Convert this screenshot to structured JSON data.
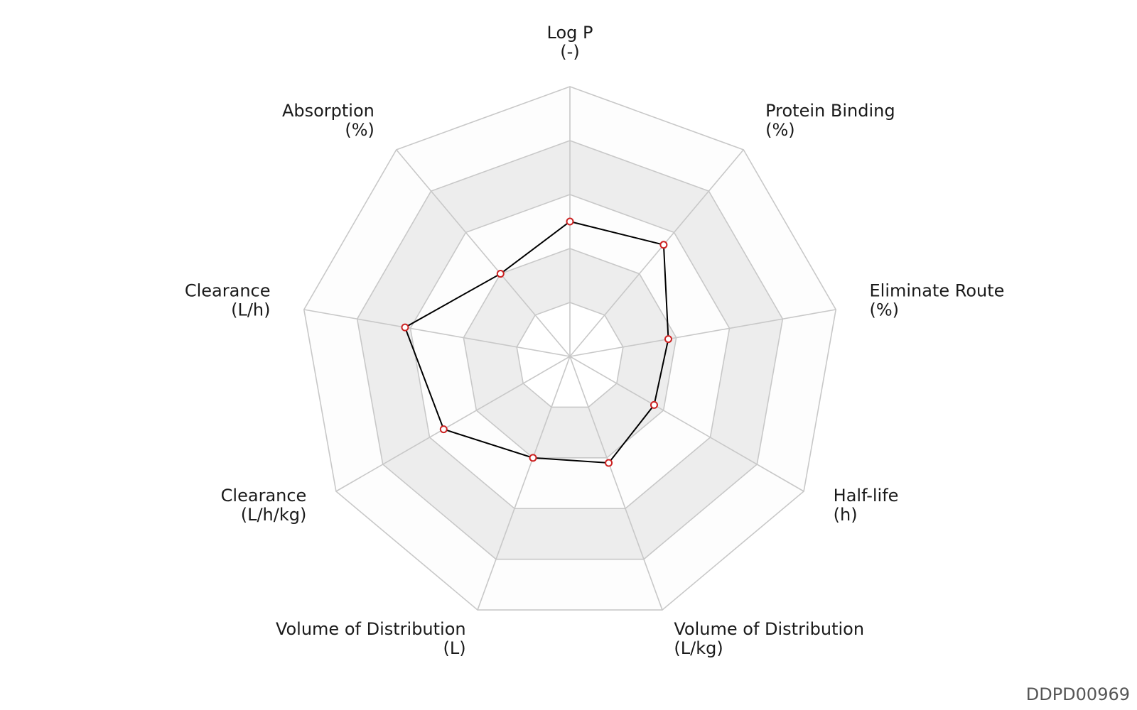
{
  "chart_data": {
    "type": "radar",
    "axes": [
      {
        "name": "Log P",
        "unit": "(-)"
      },
      {
        "name": "Protein Binding",
        "unit": "(%)"
      },
      {
        "name": "Eliminate Route",
        "unit": "(%)"
      },
      {
        "name": "Half-life",
        "unit": "(h)"
      },
      {
        "name": "Volume of Distribution",
        "unit": "(L/kg)"
      },
      {
        "name": "Volume of Distribution",
        "unit": "(L)"
      },
      {
        "name": "Clearance",
        "unit": "(L/h/kg)"
      },
      {
        "name": "Clearance",
        "unit": "(L/h)"
      },
      {
        "name": "Absorption",
        "unit": "(%)"
      }
    ],
    "levels": 5,
    "max_value": 5,
    "series": [
      {
        "values": [
          2.5,
          2.7,
          1.85,
          1.8,
          2.1,
          2.0,
          2.7,
          3.1,
          2.0
        ]
      }
    ],
    "band_colors": [
      "#ffffff",
      "#ededed",
      "#fdfdfd",
      "#ededed",
      "#fdfdfd"
    ],
    "grid_color": "#c8c8c8",
    "line_color": "#000000",
    "marker_color": "#cc2222"
  },
  "footer": {
    "id": "DDPD00969"
  }
}
